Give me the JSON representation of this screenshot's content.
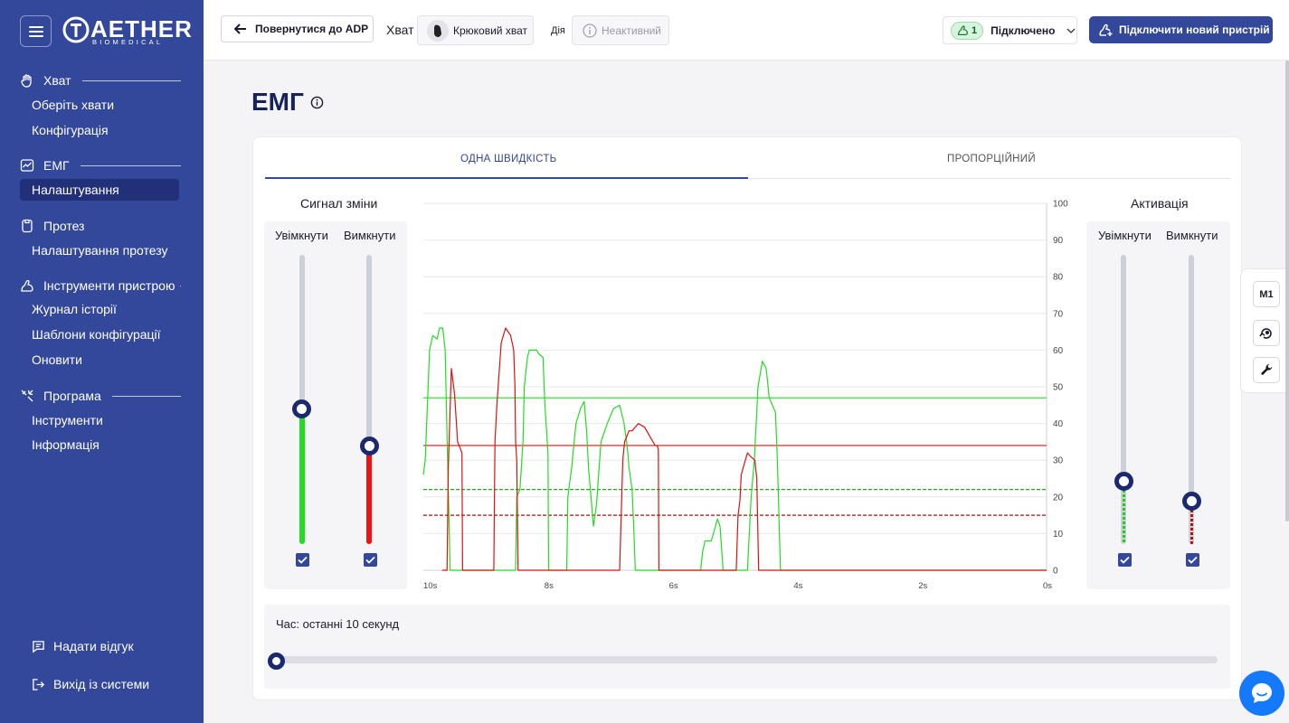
{
  "brand": {
    "name": "AETHER",
    "sub": "BIOMEDICAL"
  },
  "sidebar": {
    "sections": [
      {
        "label": "Хват",
        "icon": "hand-icon",
        "items": [
          "Оберіть хвати",
          "Конфігурація"
        ]
      },
      {
        "label": "ЕМГ",
        "icon": "emg-chart-icon",
        "items": [
          "Налаштування"
        ]
      },
      {
        "label": "Протез",
        "icon": "prosthesis-icon",
        "items": [
          "Налаштування протезу"
        ]
      },
      {
        "label": "Інструменти пристрою",
        "icon": "device-arm-icon",
        "items": [
          "Журнал історії",
          "Шаблони конфігурації",
          "Оновити"
        ]
      },
      {
        "label": "Програма",
        "icon": "tools-icon",
        "items": [
          "Інструменти",
          "Інформація"
        ]
      }
    ],
    "active_item": "Налаштування",
    "feedback": "Надати відгук",
    "logout": "Вихід із системи"
  },
  "topbar": {
    "back": "Повернутися до ADP",
    "grip_label": "Хват",
    "grip_value": "Крюковий хват",
    "action_label": "Дія",
    "action_value": "Неактивний",
    "connection_count": "1",
    "connection_status": "Підключено",
    "new_device": "Підключити новий пристрій"
  },
  "page": {
    "title": "ЕМГ"
  },
  "tabs": [
    "ОДНА ШВИДКІСТЬ",
    "ПРОПОРЦІЙНИЙ"
  ],
  "change_signal": {
    "title": "Сигнал зміни",
    "on_label": "Увімкнути",
    "off_label": "Вимкнути",
    "on_value": 47,
    "off_value": 34,
    "on_checked": true,
    "off_checked": true
  },
  "activation": {
    "title": "Активація",
    "on_label": "Увімкнути",
    "off_label": "Вимкнути",
    "on_value": 22,
    "off_value": 15,
    "on_checked": true,
    "off_checked": true
  },
  "time": {
    "label": "Час: останні 10 секунд",
    "value": 0
  },
  "tools": {
    "m1": "M1"
  },
  "colors": {
    "primary": "#33479b",
    "open": "#22dd22",
    "close": "#dd1111"
  },
  "chart_data": {
    "type": "line",
    "y_ticks": [
      "0",
      "10",
      "20",
      "30",
      "40",
      "50",
      "60",
      "70",
      "80",
      "90",
      "100"
    ],
    "x_ticks": [
      "10s",
      "8s",
      "6s",
      "4s",
      "2s",
      "0s"
    ],
    "ylim": [
      0,
      100
    ],
    "xlim": [
      10,
      0
    ],
    "thresholds": {
      "open_change": 47,
      "close_change": 34,
      "open_activation": 22,
      "close_activation": 15
    },
    "series": [
      {
        "color": "#22dd22",
        "points": [
          [
            10,
            26
          ],
          [
            9.97,
            30
          ],
          [
            9.9,
            60
          ],
          [
            9.85,
            64
          ],
          [
            9.78,
            63
          ],
          [
            9.74,
            66
          ],
          [
            9.69,
            66
          ],
          [
            9.65,
            60
          ],
          [
            9.57,
            0
          ],
          [
            9.5,
            0
          ],
          [
            8.57,
            0
          ],
          [
            8.52,
            0
          ],
          [
            8.5,
            20
          ],
          [
            8.45,
            22
          ],
          [
            8.4,
            35
          ],
          [
            8.38,
            50
          ],
          [
            8.33,
            58
          ],
          [
            8.3,
            60
          ],
          [
            8.18,
            60
          ],
          [
            8.15,
            59
          ],
          [
            8.08,
            58
          ],
          [
            8.05,
            45
          ],
          [
            8.0,
            32
          ],
          [
            7.99,
            0
          ],
          [
            7.7,
            0
          ],
          [
            7.68,
            20
          ],
          [
            7.62,
            28
          ],
          [
            7.58,
            35
          ],
          [
            7.55,
            40
          ],
          [
            7.48,
            44
          ],
          [
            7.42,
            46
          ],
          [
            7.38,
            38
          ],
          [
            7.35,
            28
          ],
          [
            7.3,
            18
          ],
          [
            7.27,
            12
          ],
          [
            7.22,
            18
          ],
          [
            7.18,
            28
          ],
          [
            7.15,
            35
          ],
          [
            7.05,
            40
          ],
          [
            6.95,
            44
          ],
          [
            6.85,
            45
          ],
          [
            6.78,
            40
          ],
          [
            6.73,
            34
          ],
          [
            6.7,
            28
          ],
          [
            6.65,
            22
          ],
          [
            6.62,
            10
          ],
          [
            6.6,
            0
          ],
          [
            6.4,
            0
          ],
          [
            6.38,
            0
          ],
          [
            6.2,
            0
          ],
          [
            6.1,
            0
          ],
          [
            5.55,
            0
          ],
          [
            5.52,
            5
          ],
          [
            5.48,
            8
          ],
          [
            5.38,
            8
          ],
          [
            5.33,
            11
          ],
          [
            5.28,
            14
          ],
          [
            5.24,
            12
          ],
          [
            5.19,
            0
          ],
          [
            5.0,
            0
          ],
          [
            4.8,
            0
          ],
          [
            4.74,
            20
          ],
          [
            4.69,
            30
          ],
          [
            4.63,
            50
          ],
          [
            4.56,
            57
          ],
          [
            4.5,
            55
          ],
          [
            4.45,
            47
          ],
          [
            4.35,
            43
          ],
          [
            4.32,
            30
          ],
          [
            4.27,
            0
          ],
          [
            3.9,
            0
          ],
          [
            0,
            0
          ]
        ]
      },
      {
        "color": "#dd1111",
        "points": [
          [
            9.7,
            0
          ],
          [
            9.62,
            0
          ],
          [
            9.6,
            28
          ],
          [
            9.55,
            55
          ],
          [
            9.5,
            48
          ],
          [
            9.45,
            35
          ],
          [
            9.38,
            32
          ],
          [
            9.37,
            0
          ],
          [
            8.87,
            0
          ],
          [
            8.85,
            35
          ],
          [
            8.82,
            45
          ],
          [
            8.75,
            62
          ],
          [
            8.68,
            66
          ],
          [
            8.6,
            64
          ],
          [
            8.55,
            60
          ],
          [
            8.53,
            50
          ],
          [
            8.52,
            35
          ],
          [
            8.5,
            30
          ],
          [
            8.48,
            0
          ],
          [
            7.95,
            0
          ],
          [
            6.9,
            0
          ],
          [
            6.85,
            0
          ],
          [
            6.8,
            30
          ],
          [
            6.77,
            35
          ],
          [
            6.7,
            38
          ],
          [
            6.65,
            38
          ],
          [
            6.55,
            40
          ],
          [
            6.45,
            39
          ],
          [
            6.35,
            36
          ],
          [
            6.28,
            34
          ],
          [
            6.25,
            34
          ],
          [
            6.23,
            33
          ],
          [
            6.22,
            0
          ],
          [
            4.98,
            0
          ],
          [
            4.95,
            15
          ],
          [
            4.92,
            19
          ],
          [
            4.9,
            26
          ],
          [
            4.85,
            29
          ],
          [
            4.8,
            32
          ],
          [
            4.75,
            31
          ],
          [
            4.68,
            30
          ],
          [
            4.65,
            25
          ],
          [
            4.62,
            0
          ],
          [
            0,
            0
          ]
        ]
      }
    ]
  }
}
